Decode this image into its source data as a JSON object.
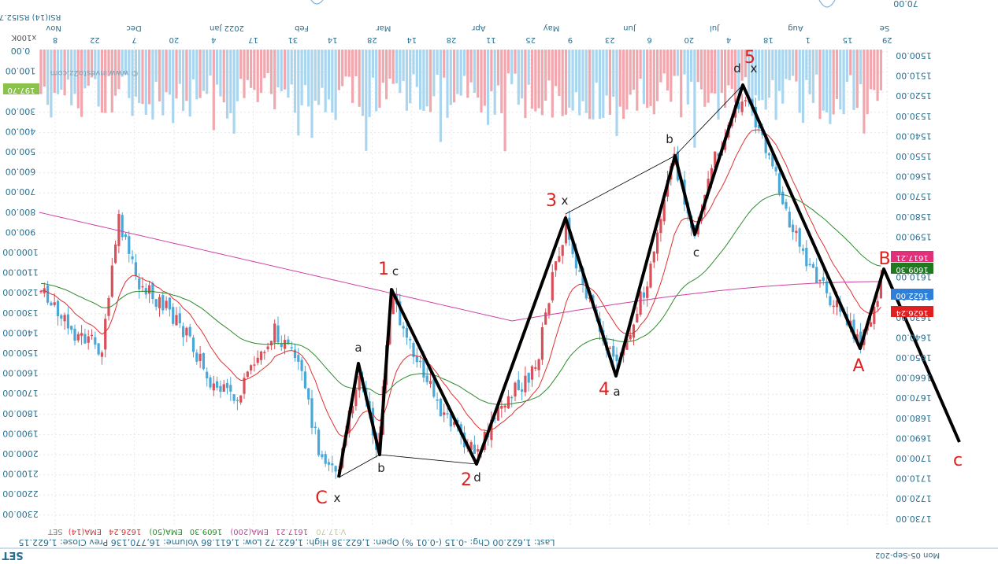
{
  "chart_data": {
    "type": "candlestick",
    "symbol": "SET",
    "footer_date": "Mon 05-Sep-202",
    "top_left_readout": "RSI(14)  RSI52.70",
    "top_right_axis_value": "70.00",
    "watermark": "© www.investo2z.com",
    "volume_scale_label": "x100K",
    "legend": [
      {
        "label": "SET",
        "color": "#808080"
      },
      {
        "label": "EMA(14)",
        "color": "#e03030"
      },
      {
        "label": "1626.24",
        "color": "#e03030"
      },
      {
        "label": "EMA(50)",
        "color": "#2e8b2e"
      },
      {
        "label": "1609.30",
        "color": "#2e8b2e"
      },
      {
        "label": "EMA(200)",
        "color": "#d040a0"
      },
      {
        "label": "1617.21",
        "color": "#d040a0"
      },
      {
        "label": "V:17.70",
        "color": "#c8c8a0"
      }
    ],
    "status_line": "Last: 1,622.00  Chg: -0.15 (-0.01 %)  Open: 1,622.38  High: 1,622.72  Low: 1,611.86  Volume: 16,770,136  Prev Close: 1,622.15",
    "month_labels": [
      "Nov",
      "Dec",
      "2022 Jan",
      "Feb",
      "Mar",
      "Apr",
      "May",
      "Jun",
      "Jul",
      "Aug",
      "Se"
    ],
    "day_labels": [
      "8",
      "22",
      "7",
      "20",
      "4",
      "17",
      "31",
      "14",
      "28",
      "14",
      "28",
      "11",
      "25",
      "9",
      "23",
      "6",
      "20",
      "4",
      "18",
      "1",
      "15",
      "29"
    ],
    "price_axis": [
      "1500.00",
      "1510.00",
      "1520.00",
      "1530.00",
      "1540.00",
      "1550.00",
      "1560.00",
      "1570.00",
      "1580.00",
      "1590.00",
      "1600.00",
      "1610.00",
      "1620.00",
      "1630.00",
      "1640.00",
      "1650.00",
      "1660.00",
      "1670.00",
      "1680.00",
      "1690.00",
      "1700.00",
      "1710.00",
      "1720.00",
      "1730.00"
    ],
    "volume_axis": [
      "0.00",
      "100.00",
      "200.00",
      "300.00",
      "400.00",
      "500.00",
      "600.00",
      "700.00",
      "800.00",
      "900.00",
      "1000.00",
      "1100.00",
      "1200.00",
      "1300.00",
      "1400.00",
      "1500.00",
      "1600.00",
      "1700.00",
      "1800.00",
      "1900.00",
      "2000.00",
      "2100.00",
      "2200.00",
      "2300.00"
    ],
    "left_badge": "197.70",
    "price_tags": [
      {
        "label": "1617.21",
        "color": "#e0307a"
      },
      {
        "label": "1609.30",
        "color": "#1f7a1f"
      },
      {
        "label": "1622.00",
        "color": "#2f7fd8"
      },
      {
        "label": "1626.24",
        "color": "#e02020"
      }
    ],
    "wave_labels": {
      "primary": [
        "1",
        "2",
        "3",
        "4",
        "5",
        "A",
        "B",
        "C",
        "c"
      ],
      "minor": [
        "a",
        "b",
        "c",
        "d",
        "x",
        "x",
        "x",
        "b",
        "c",
        "d",
        "x",
        "a",
        "b"
      ]
    },
    "series": [
      {
        "name": "EMA(14)",
        "value": 1626.24
      },
      {
        "name": "EMA(50)",
        "value": 1609.3
      },
      {
        "name": "EMA(200)",
        "value": 1617.21
      }
    ],
    "last_price": 1622.0
  },
  "colors": {
    "up": "#d9505a",
    "down": "#4aa8d8",
    "vol_up": "#f2a6ad",
    "vol_down": "#a9d6ee",
    "ema14": "#e03030",
    "ema50": "#2e8b2e",
    "ema200": "#d040a0",
    "axis_text": "#2a6f8f",
    "wave_red": "#e02020"
  }
}
